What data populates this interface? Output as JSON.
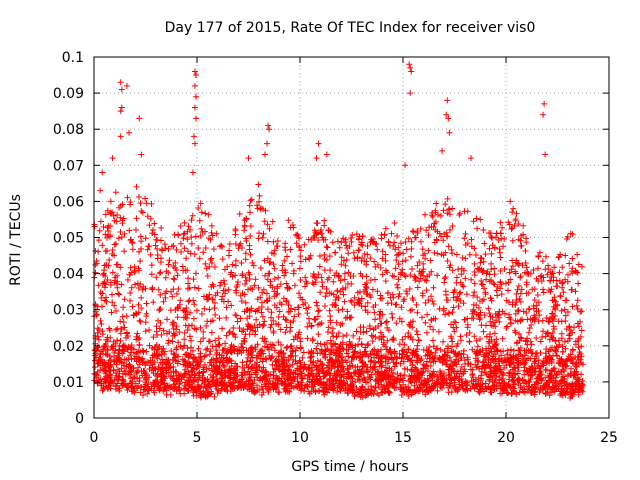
{
  "chart_data": {
    "type": "scatter",
    "title": "Day 177 of 2015, Rate Of TEC Index for receiver vis0",
    "xlabel": "GPS time / hours",
    "ylabel": "ROTI / TECUs",
    "xlim": [
      0,
      25
    ],
    "ylim": [
      0,
      0.1
    ],
    "xticks": [
      0,
      5,
      10,
      15,
      20,
      25
    ],
    "xtick_labels": [
      "0",
      "5",
      "10",
      "15",
      "20",
      "25"
    ],
    "yticks": [
      0,
      0.01,
      0.02,
      0.03,
      0.04,
      0.05,
      0.06,
      0.07,
      0.08,
      0.09,
      0.1
    ],
    "ytick_labels": [
      "0",
      "0.01",
      "0.02",
      "0.03",
      "0.04",
      "0.05",
      "0.06",
      "0.07",
      "0.08",
      "0.09",
      "0.1"
    ],
    "grid": true,
    "marker": "+",
    "color": "#ff0000",
    "data_range": {
      "x": [
        0,
        23.75
      ],
      "y": [
        0.003,
        0.098
      ]
    },
    "envelope": {
      "x": [
        0,
        0.5,
        1,
        1.5,
        2,
        2.5,
        3,
        3.5,
        4,
        4.5,
        5,
        5.5,
        6,
        6.5,
        7,
        7.5,
        8,
        8.5,
        9,
        9.5,
        10,
        10.5,
        11,
        11.5,
        12,
        12.5,
        13,
        13.5,
        14,
        14.5,
        15,
        15.5,
        16,
        16.5,
        17,
        17.5,
        18,
        18.5,
        19,
        19.5,
        20,
        20.5,
        21,
        21.5,
        22,
        22.5,
        23,
        23.5
      ],
      "typical_max": [
        0.055,
        0.058,
        0.062,
        0.06,
        0.065,
        0.063,
        0.058,
        0.05,
        0.052,
        0.055,
        0.062,
        0.06,
        0.05,
        0.048,
        0.055,
        0.06,
        0.065,
        0.055,
        0.052,
        0.055,
        0.052,
        0.055,
        0.058,
        0.052,
        0.05,
        0.05,
        0.052,
        0.05,
        0.052,
        0.055,
        0.058,
        0.058,
        0.058,
        0.06,
        0.062,
        0.058,
        0.06,
        0.058,
        0.055,
        0.05,
        0.06,
        0.058,
        0.052,
        0.048,
        0.045,
        0.045,
        0.052,
        0.05
      ],
      "typical_min": [
        0.01,
        0.008,
        0.008,
        0.008,
        0.007,
        0.007,
        0.008,
        0.007,
        0.007,
        0.008,
        0.006,
        0.006,
        0.007,
        0.008,
        0.008,
        0.008,
        0.007,
        0.008,
        0.007,
        0.008,
        0.008,
        0.007,
        0.007,
        0.008,
        0.008,
        0.007,
        0.006,
        0.007,
        0.007,
        0.008,
        0.007,
        0.007,
        0.007,
        0.008,
        0.008,
        0.008,
        0.008,
        0.008,
        0.007,
        0.008,
        0.007,
        0.007,
        0.007,
        0.007,
        0.007,
        0.007,
        0.006,
        0.007
      ]
    },
    "outliers": [
      {
        "x": 0.3,
        "y": 0.063
      },
      {
        "x": 0.4,
        "y": 0.068
      },
      {
        "x": 0.9,
        "y": 0.072
      },
      {
        "x": 1.3,
        "y": 0.093
      },
      {
        "x": 1.35,
        "y": 0.091
      },
      {
        "x": 1.3,
        "y": 0.085
      },
      {
        "x": 1.35,
        "y": 0.086
      },
      {
        "x": 1.3,
        "y": 0.078
      },
      {
        "x": 1.6,
        "y": 0.092
      },
      {
        "x": 1.7,
        "y": 0.079
      },
      {
        "x": 2.2,
        "y": 0.083
      },
      {
        "x": 2.3,
        "y": 0.073
      },
      {
        "x": 4.8,
        "y": 0.068
      },
      {
        "x": 4.9,
        "y": 0.076
      },
      {
        "x": 4.85,
        "y": 0.078
      },
      {
        "x": 4.95,
        "y": 0.083
      },
      {
        "x": 4.9,
        "y": 0.086
      },
      {
        "x": 4.95,
        "y": 0.089
      },
      {
        "x": 4.9,
        "y": 0.092
      },
      {
        "x": 4.95,
        "y": 0.095
      },
      {
        "x": 4.9,
        "y": 0.096
      },
      {
        "x": 7.5,
        "y": 0.072
      },
      {
        "x": 8.3,
        "y": 0.073
      },
      {
        "x": 8.4,
        "y": 0.076
      },
      {
        "x": 8.5,
        "y": 0.08
      },
      {
        "x": 8.45,
        "y": 0.081
      },
      {
        "x": 10.8,
        "y": 0.072
      },
      {
        "x": 10.9,
        "y": 0.076
      },
      {
        "x": 11.3,
        "y": 0.073
      },
      {
        "x": 15.1,
        "y": 0.07
      },
      {
        "x": 15.3,
        "y": 0.098
      },
      {
        "x": 15.35,
        "y": 0.097
      },
      {
        "x": 15.4,
        "y": 0.096
      },
      {
        "x": 15.35,
        "y": 0.09
      },
      {
        "x": 16.9,
        "y": 0.074
      },
      {
        "x": 17.1,
        "y": 0.084
      },
      {
        "x": 17.15,
        "y": 0.088
      },
      {
        "x": 17.2,
        "y": 0.083
      },
      {
        "x": 17.25,
        "y": 0.079
      },
      {
        "x": 18.3,
        "y": 0.072
      },
      {
        "x": 21.8,
        "y": 0.084
      },
      {
        "x": 21.85,
        "y": 0.087
      },
      {
        "x": 21.9,
        "y": 0.073
      }
    ]
  }
}
